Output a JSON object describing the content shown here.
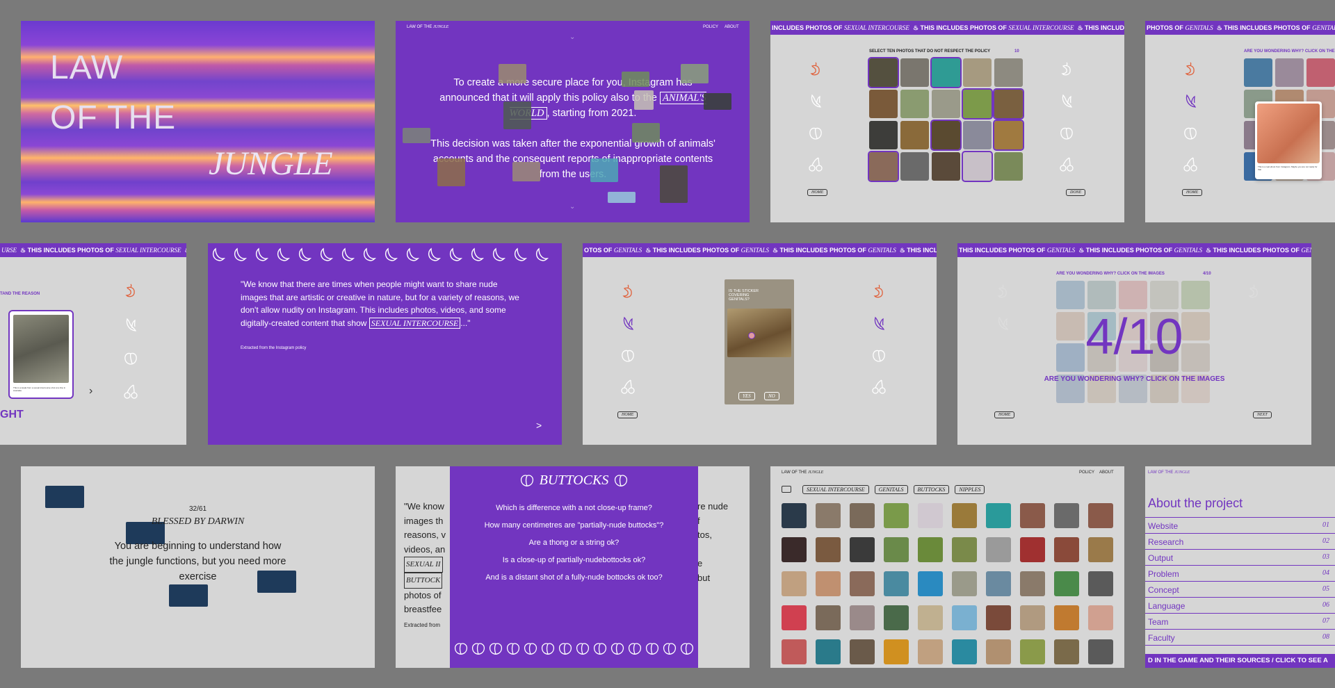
{
  "colors": {
    "bg": "#7a7a7a",
    "purple": "#7235c0",
    "grey": "#d6d6d6"
  },
  "p1": {
    "line1": "LAW",
    "line2": "OF THE",
    "line3": "JUNGLE"
  },
  "p2": {
    "brand": "LAW OF THE",
    "brand_italic": "JUNGLE",
    "nav_policy": "POLICY",
    "nav_about": "ABOUT",
    "para1a": "To create a more secure place for you, Instagram has announced that it will apply this policy also to the ",
    "para1_boxed": "ANIMAL'S WORLD",
    "para1b": ", starting from 2021.",
    "para2": "This decision was taken after the exponential growth of animals' accounts and the consequent reports of inappropriate contents from the users."
  },
  "p3": {
    "marquee": "INCLUDES PHOTOS OF ",
    "marquee_italic": "SEXUAL INTERCOURSE",
    "title": "SELECT TEN PHOTOS THAT DO NOT RESPECT THE POLICY",
    "count": "10",
    "home": "HOME",
    "done": "DONE"
  },
  "p4": {
    "marquee": "PHOTOS OF ",
    "marquee_italic": "GENITALS",
    "title": "ARE YOU WONDERING WHY? CLICK ON THE",
    "home": "HOME",
    "caption": "This is a real photo from Instagram. Maybe you are not ready for that"
  },
  "p5": {
    "marquee": "THIS INCLUDES PHOTOS OF ",
    "marquee_italic": "SEXUAL INTERCOURSE",
    "left_text": "TAND THE REASON",
    "big": "GHT",
    "card_caption": "This is a koala from a sexual intercourse shot at a Zoo in Australia."
  },
  "p6": {
    "quote_a": "\"We know that there are times when people might want to share nude images that are artistic or creative in nature, but for a variety of reasons, we don't allow nudity on Instagram. This includes photos, videos, and some digitally-created content that show ",
    "quote_boxed": "SEXUAL INTERCOURSE",
    "quote_b": "...\"",
    "source": "Extracted from the Instagram policy",
    "arrow": ">"
  },
  "p7": {
    "marquee": "THIS INCLUDES PHOTOS OF ",
    "marquee_italic": "GENITALS",
    "question": "IS THE STICKER COVERING GENITALS?",
    "yes": "YES",
    "no": "NO",
    "home": "HOME"
  },
  "p8": {
    "marquee": "THIS INCLUDES PHOTOS OF ",
    "marquee_italic": "GENITALS",
    "title": "ARE YOU WONDERING WHY? CLICK ON THE IMAGES",
    "count": "4/10",
    "big": "4/10",
    "sub": "ARE YOU WONDERING WHY? CLICK ON THE IMAGES",
    "home": "HOME",
    "next": "NEXT"
  },
  "p9": {
    "score": "32/61",
    "rank": "BLESSED BY DARWIN",
    "msg": "You are beginning to understand how the jungle functions, but you need more exercise"
  },
  "p10": {
    "title": "BUTTOCKS",
    "q1": "Which is difference with a not close-up frame?",
    "q2": "How many centimetres are \"partially-nude buttocks\"?",
    "q3": "Are a thong or a string ok?",
    "q4": "Is a close-up of partially-nudebottocks ok?",
    "q5": "And is a distant shot of a fully-nude bottocks ok too?",
    "bg_lines": [
      "\"We know",
      "images th",
      "reasons, v",
      "videos, an",
      "SEXUAL II",
      "BUTTOCK",
      "photos of",
      "breastfee"
    ],
    "bg_right": [
      "re nude",
      "f",
      "tos,",
      "e",
      "but"
    ],
    "bg_source": "Extracted from"
  },
  "p11": {
    "brand": "LAW OF THE",
    "brand_italic": "JUNGLE",
    "nav_policy": "POLICY",
    "nav_about": "ABOUT",
    "tags": [
      "SEXUAL INTERCOURSE",
      "GENITALS",
      "BUTTOCKS",
      "NIPPLES"
    ]
  },
  "p12": {
    "brand": "LAW OF THE",
    "brand_italic": "JUNGLE",
    "title": "About the project",
    "items": [
      {
        "label": "Website",
        "num": "01"
      },
      {
        "label": "Research",
        "num": "02"
      },
      {
        "label": "Output",
        "num": "03"
      },
      {
        "label": "Problem",
        "num": "04"
      },
      {
        "label": "Concept",
        "num": "05"
      },
      {
        "label": "Language",
        "num": "06"
      },
      {
        "label": "Team",
        "num": "07"
      },
      {
        "label": "Faculty",
        "num": "08"
      }
    ],
    "footer": "D IN THE GAME AND THEIR SOURCES / CLICK TO SEE A"
  }
}
